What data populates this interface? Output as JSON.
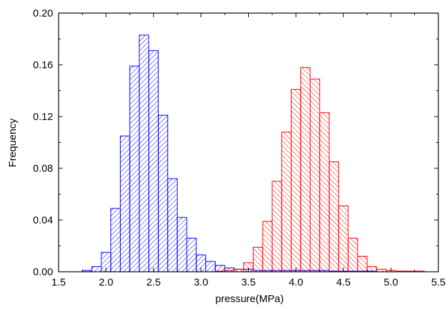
{
  "chart_data": {
    "type": "bar",
    "title": "",
    "xlabel": "pressure(MPa)",
    "ylabel": "Frequency",
    "xlim": [
      1.5,
      5.5
    ],
    "ylim": [
      0.0,
      0.2
    ],
    "x_ticks": [
      "1.5",
      "2.0",
      "2.5",
      "3.0",
      "3.5",
      "4.0",
      "4.5",
      "5.0",
      "5.5"
    ],
    "y_ticks": [
      "0.00",
      "0.04",
      "0.08",
      "0.12",
      "0.16",
      "0.20"
    ],
    "grid": false,
    "legend": "none",
    "bin_width": 0.1,
    "series": [
      {
        "color": "#0000ff",
        "hatch": "diagonal",
        "bins": [
          {
            "x": 1.8,
            "y": 0.001
          },
          {
            "x": 1.9,
            "y": 0.004
          },
          {
            "x": 2.0,
            "y": 0.015
          },
          {
            "x": 2.1,
            "y": 0.049
          },
          {
            "x": 2.2,
            "y": 0.105
          },
          {
            "x": 2.3,
            "y": 0.159
          },
          {
            "x": 2.4,
            "y": 0.183
          },
          {
            "x": 2.5,
            "y": 0.171
          },
          {
            "x": 2.6,
            "y": 0.121
          },
          {
            "x": 2.7,
            "y": 0.072
          },
          {
            "x": 2.8,
            "y": 0.042
          },
          {
            "x": 2.9,
            "y": 0.026
          },
          {
            "x": 3.0,
            "y": 0.013
          },
          {
            "x": 3.1,
            "y": 0.008
          },
          {
            "x": 3.2,
            "y": 0.005
          },
          {
            "x": 3.3,
            "y": 0.003
          },
          {
            "x": 3.4,
            "y": 0.002
          },
          {
            "x": 3.5,
            "y": 0.002
          },
          {
            "x": 3.6,
            "y": 0.001
          },
          {
            "x": 3.7,
            "y": 0.001
          },
          {
            "x": 3.8,
            "y": 0.001
          },
          {
            "x": 3.9,
            "y": 0.001
          },
          {
            "x": 4.0,
            "y": 0.001
          },
          {
            "x": 4.1,
            "y": 0.001
          },
          {
            "x": 4.2,
            "y": 0.001
          },
          {
            "x": 4.3,
            "y": 0.001
          },
          {
            "x": 4.4,
            "y": 0.0005
          },
          {
            "x": 4.5,
            "y": 0.0005
          },
          {
            "x": 4.6,
            "y": 0.0005
          },
          {
            "x": 4.7,
            "y": 0.0005
          },
          {
            "x": 4.8,
            "y": 0.0005
          }
        ]
      },
      {
        "color": "#ff0000",
        "hatch": "diagonal",
        "bins": [
          {
            "x": 3.2,
            "y": 0.0005
          },
          {
            "x": 3.3,
            "y": 0.001
          },
          {
            "x": 3.4,
            "y": 0.002
          },
          {
            "x": 3.5,
            "y": 0.007
          },
          {
            "x": 3.6,
            "y": 0.019
          },
          {
            "x": 3.7,
            "y": 0.039
          },
          {
            "x": 3.8,
            "y": 0.07
          },
          {
            "x": 3.9,
            "y": 0.108
          },
          {
            "x": 4.0,
            "y": 0.141
          },
          {
            "x": 4.1,
            "y": 0.158
          },
          {
            "x": 4.2,
            "y": 0.149
          },
          {
            "x": 4.3,
            "y": 0.123
          },
          {
            "x": 4.4,
            "y": 0.085
          },
          {
            "x": 4.5,
            "y": 0.051
          },
          {
            "x": 4.6,
            "y": 0.026
          },
          {
            "x": 4.7,
            "y": 0.012
          },
          {
            "x": 4.8,
            "y": 0.004
          },
          {
            "x": 4.9,
            "y": 0.002
          },
          {
            "x": 5.0,
            "y": 0.001
          },
          {
            "x": 5.1,
            "y": 0.0005
          },
          {
            "x": 5.2,
            "y": 0.0005
          },
          {
            "x": 5.3,
            "y": 0.0005
          }
        ]
      }
    ]
  }
}
